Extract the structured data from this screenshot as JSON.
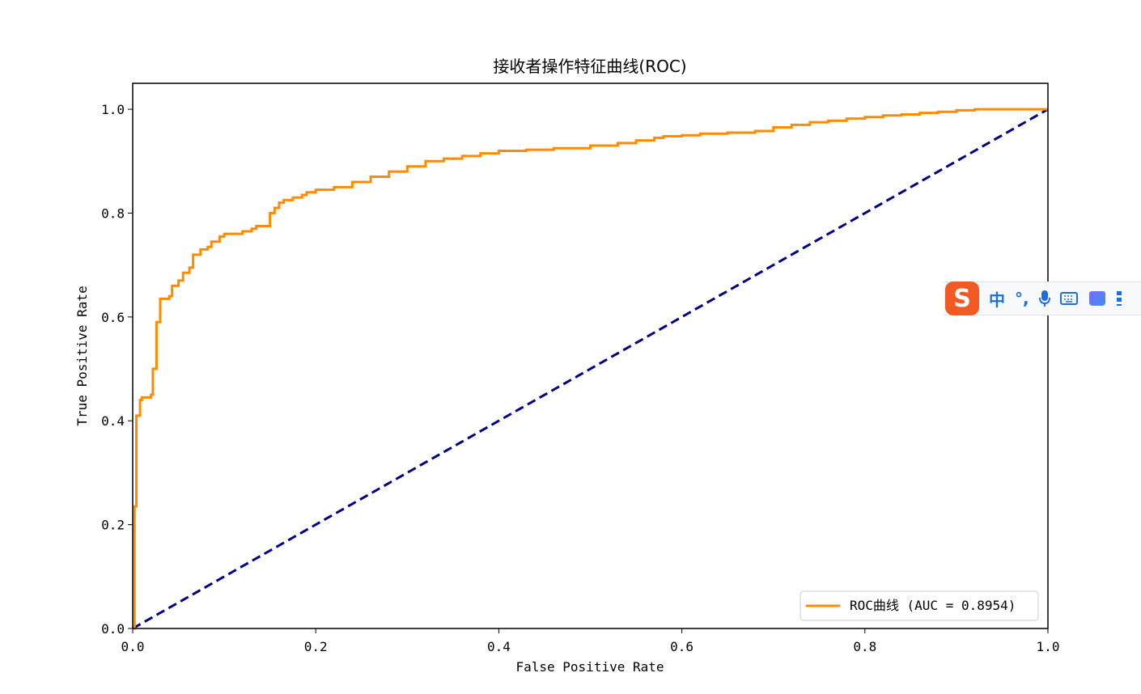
{
  "chart_data": {
    "type": "line",
    "title": "接收者操作特征曲线(ROC)",
    "xlabel": "False Positive Rate",
    "ylabel": "True Positive Rate",
    "xlim": [
      0.0,
      1.0
    ],
    "ylim": [
      0.0,
      1.05
    ],
    "xticks": [
      "0.0",
      "0.2",
      "0.4",
      "0.6",
      "0.8",
      "1.0"
    ],
    "yticks": [
      "0.0",
      "0.2",
      "0.4",
      "0.6",
      "0.8",
      "1.0"
    ],
    "grid": false,
    "legend_position": "lower-right",
    "series": [
      {
        "name": "ROC曲线 (AUC = 0.8954)",
        "color": "#ff8c00",
        "style": "solid",
        "step": true,
        "x": [
          0.0,
          0.002,
          0.004,
          0.006,
          0.008,
          0.01,
          0.013,
          0.02,
          0.022,
          0.024,
          0.026,
          0.028,
          0.03,
          0.033,
          0.04,
          0.043,
          0.047,
          0.05,
          0.055,
          0.058,
          0.062,
          0.066,
          0.07,
          0.074,
          0.078,
          0.082,
          0.086,
          0.09,
          0.095,
          0.1,
          0.105,
          0.11,
          0.12,
          0.13,
          0.135,
          0.14,
          0.145,
          0.15,
          0.155,
          0.16,
          0.165,
          0.17,
          0.175,
          0.18,
          0.185,
          0.19,
          0.2,
          0.22,
          0.24,
          0.26,
          0.28,
          0.3,
          0.32,
          0.34,
          0.36,
          0.38,
          0.4,
          0.43,
          0.46,
          0.5,
          0.53,
          0.55,
          0.57,
          0.58,
          0.6,
          0.62,
          0.65,
          0.68,
          0.7,
          0.72,
          0.74,
          0.76,
          0.78,
          0.8,
          0.82,
          0.84,
          0.86,
          0.88,
          0.9,
          0.92,
          0.95,
          1.0
        ],
        "y": [
          0.0,
          0.235,
          0.41,
          0.41,
          0.44,
          0.445,
          0.445,
          0.45,
          0.5,
          0.5,
          0.59,
          0.59,
          0.635,
          0.635,
          0.64,
          0.66,
          0.66,
          0.67,
          0.685,
          0.685,
          0.695,
          0.72,
          0.72,
          0.73,
          0.73,
          0.735,
          0.745,
          0.745,
          0.755,
          0.76,
          0.76,
          0.76,
          0.765,
          0.77,
          0.775,
          0.775,
          0.775,
          0.8,
          0.81,
          0.82,
          0.825,
          0.825,
          0.83,
          0.83,
          0.835,
          0.84,
          0.845,
          0.85,
          0.86,
          0.87,
          0.88,
          0.89,
          0.9,
          0.905,
          0.91,
          0.915,
          0.92,
          0.922,
          0.925,
          0.93,
          0.935,
          0.94,
          0.945,
          0.948,
          0.95,
          0.953,
          0.955,
          0.958,
          0.965,
          0.97,
          0.975,
          0.978,
          0.982,
          0.985,
          0.988,
          0.99,
          0.993,
          0.995,
          0.998,
          1.0,
          1.0,
          1.0
        ]
      },
      {
        "color": "#000080",
        "style": "dashed",
        "x": [
          0.0,
          1.0
        ],
        "y": [
          0.0,
          1.0
        ]
      }
    ]
  },
  "ime_toolbar": {
    "logo": "S",
    "mode": "中",
    "punct": "°,",
    "icons": [
      "mic-icon",
      "keyboard-icon",
      "skin-icon",
      "grip-icon"
    ]
  }
}
